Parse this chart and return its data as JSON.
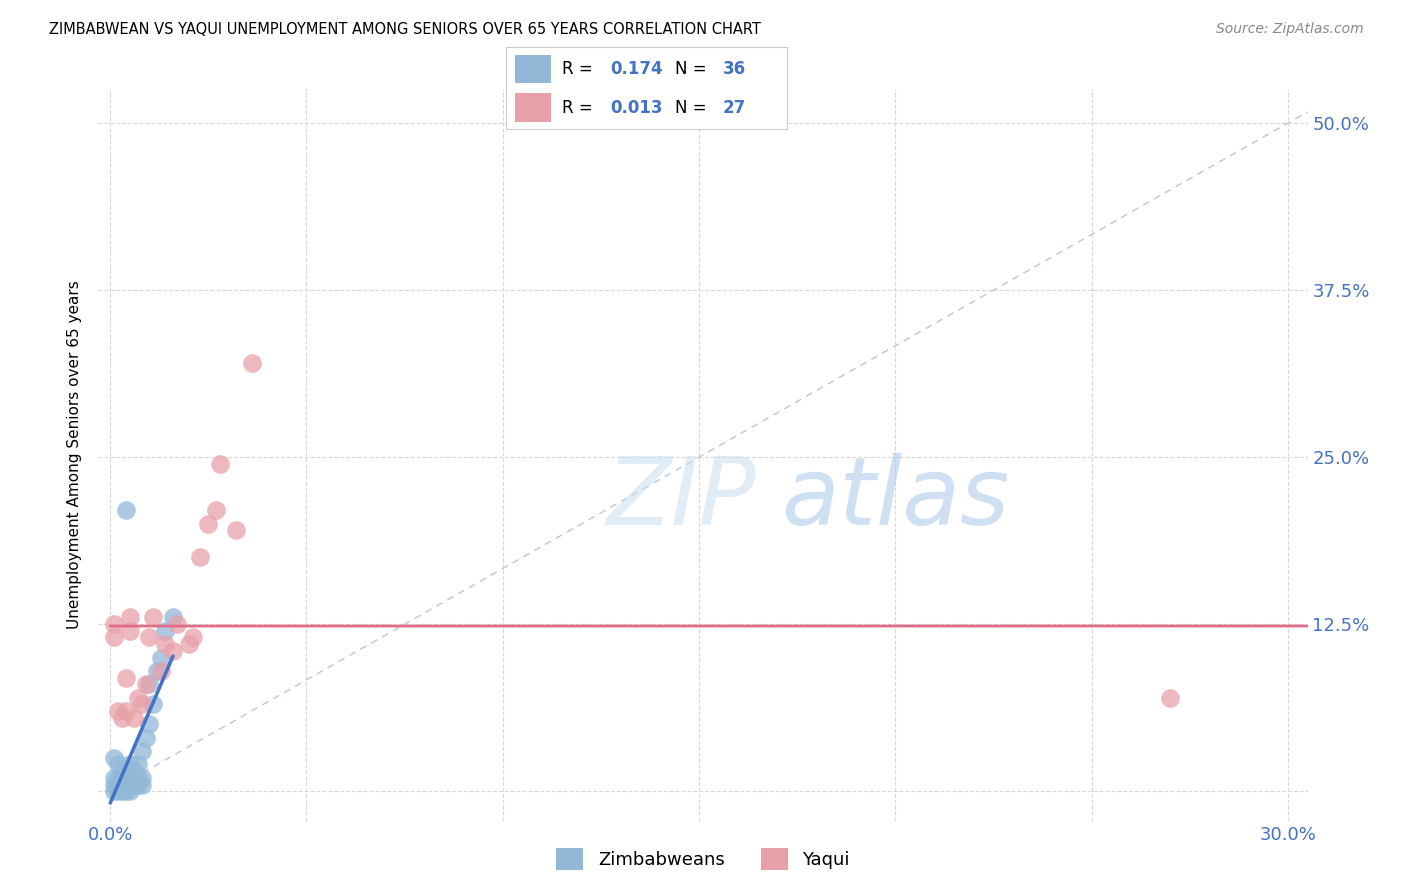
{
  "title": "ZIMBABWEAN VS YAQUI UNEMPLOYMENT AMONG SENIORS OVER 65 YEARS CORRELATION CHART",
  "source": "Source: ZipAtlas.com",
  "ylabel": "Unemployment Among Seniors over 65 years",
  "color_blue": "#92b8d8",
  "color_pink": "#e8a0a8",
  "color_blue_line": "#4472c4",
  "color_pink_line": "#e06c8a",
  "color_ref_line": "#b8c8d8",
  "watermark_zip": "ZIP",
  "watermark_atlas": "atlas",
  "blue_x": [
    0.001,
    0.001,
    0.001,
    0.001,
    0.002,
    0.002,
    0.002,
    0.002,
    0.003,
    0.003,
    0.003,
    0.003,
    0.004,
    0.004,
    0.004,
    0.005,
    0.005,
    0.005,
    0.006,
    0.006,
    0.006,
    0.007,
    0.007,
    0.007,
    0.008,
    0.008,
    0.008,
    0.009,
    0.01,
    0.01,
    0.011,
    0.012,
    0.013,
    0.014,
    0.016,
    0.004
  ],
  "blue_y": [
    0.0,
    0.005,
    0.01,
    0.025,
    0.0,
    0.005,
    0.01,
    0.02,
    0.0,
    0.005,
    0.01,
    0.015,
    0.0,
    0.005,
    0.015,
    0.0,
    0.005,
    0.02,
    0.005,
    0.01,
    0.015,
    0.005,
    0.01,
    0.02,
    0.005,
    0.01,
    0.03,
    0.04,
    0.05,
    0.08,
    0.065,
    0.09,
    0.1,
    0.12,
    0.13,
    0.21
  ],
  "pink_x": [
    0.001,
    0.001,
    0.002,
    0.003,
    0.004,
    0.004,
    0.005,
    0.005,
    0.006,
    0.007,
    0.008,
    0.009,
    0.01,
    0.011,
    0.013,
    0.014,
    0.016,
    0.017,
    0.02,
    0.021,
    0.023,
    0.025,
    0.027,
    0.028,
    0.032,
    0.036,
    0.27
  ],
  "pink_y": [
    0.115,
    0.125,
    0.06,
    0.055,
    0.06,
    0.085,
    0.12,
    0.13,
    0.055,
    0.07,
    0.065,
    0.08,
    0.115,
    0.13,
    0.09,
    0.11,
    0.105,
    0.125,
    0.11,
    0.115,
    0.175,
    0.2,
    0.21,
    0.245,
    0.195,
    0.32,
    0.07
  ]
}
